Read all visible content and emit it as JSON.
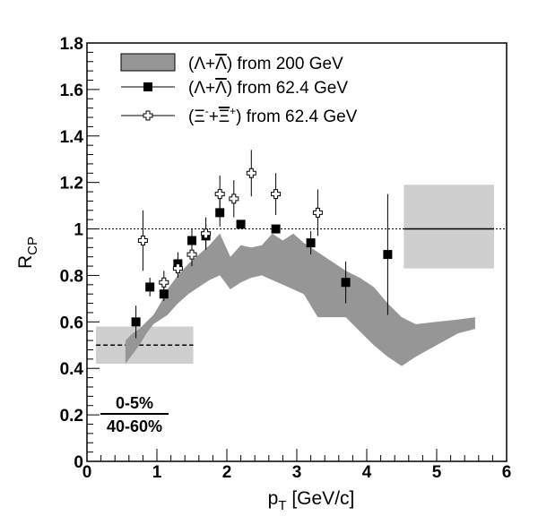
{
  "chart_data": {
    "type": "scatter",
    "xlabel": "p",
    "xlabel_sub": "T",
    "xlabel_unit": " [GeV/c]",
    "ylabel": "R",
    "ylabel_sub": "CP",
    "xlim": [
      0,
      6
    ],
    "ylim": [
      0,
      1.8
    ],
    "x_ticks": [
      0,
      1,
      2,
      3,
      4,
      5,
      6
    ],
    "y_ticks": [
      0,
      0.2,
      0.4,
      0.6,
      0.8,
      1,
      1.2,
      1.4,
      1.6,
      1.8
    ],
    "x_tick_labels": [
      "0",
      "1",
      "2",
      "3",
      "4",
      "5",
      "6"
    ],
    "y_tick_labels": [
      "0",
      "0.2",
      "0.4",
      "0.6",
      "0.8",
      "1",
      "1.2",
      "1.4",
      "1.6",
      "1.8"
    ],
    "grid": false,
    "legend_position": "top",
    "legend": [
      {
        "marker": "band",
        "part1": "(Λ+",
        "bar": "Λ",
        "part2": ") from 200 GeV"
      },
      {
        "marker": "filled-square",
        "part1": "(Λ+",
        "bar": "Λ",
        "part2": ") from 62.4 GeV"
      },
      {
        "marker": "open-cross",
        "part1": "(Ξ",
        "sup1": "-",
        "part2": "+",
        "bar": "Ξ",
        "sup2": "+",
        "part3": ") from 62.4 GeV"
      }
    ],
    "centrality_label": {
      "numerator": "0-5%",
      "denominator": "40-60%"
    },
    "reference_line_y": 1,
    "series": [
      {
        "name": "lambda_200",
        "style": "band",
        "color": "#969696",
        "x": [
          0.55,
          0.65,
          0.75,
          0.85,
          0.95,
          1.05,
          1.15,
          1.3,
          1.45,
          1.6,
          1.75,
          1.9,
          2.05,
          2.2,
          2.35,
          2.5,
          2.65,
          2.8,
          2.95,
          3.1,
          3.3,
          3.5,
          3.7,
          3.9,
          4.1,
          4.3,
          4.5,
          4.7,
          5.0,
          5.3,
          5.55
        ],
        "low": [
          0.42,
          0.46,
          0.5,
          0.55,
          0.59,
          0.61,
          0.63,
          0.68,
          0.72,
          0.75,
          0.78,
          0.8,
          0.74,
          0.77,
          0.79,
          0.8,
          0.78,
          0.76,
          0.74,
          0.72,
          0.62,
          0.62,
          0.62,
          0.56,
          0.5,
          0.45,
          0.41,
          0.45,
          0.5,
          0.55,
          0.57
        ],
        "high": [
          0.52,
          0.55,
          0.57,
          0.6,
          0.63,
          0.68,
          0.74,
          0.8,
          0.85,
          0.89,
          0.93,
          0.98,
          0.88,
          0.93,
          0.92,
          0.93,
          0.98,
          0.95,
          0.98,
          0.94,
          0.9,
          0.86,
          0.82,
          0.79,
          0.75,
          0.68,
          0.62,
          0.59,
          0.6,
          0.61,
          0.62
        ]
      },
      {
        "name": "lambda_62",
        "style": "filled-square",
        "color": "#000000",
        "x": [
          0.7,
          0.9,
          1.1,
          1.3,
          1.5,
          1.7,
          1.9,
          2.2,
          2.7,
          3.2,
          3.7,
          4.3
        ],
        "y": [
          0.6,
          0.75,
          0.72,
          0.85,
          0.95,
          0.97,
          1.07,
          1.02,
          1.0,
          0.94,
          0.77,
          0.89
        ],
        "y_err": [
          0.07,
          0.04,
          0.03,
          0.05,
          0.05,
          0.05,
          0.06,
          0.0,
          0.0,
          0.05,
          0.09,
          0.26
        ]
      },
      {
        "name": "xi_62",
        "style": "open-cross",
        "color": "#000000",
        "x": [
          0.8,
          1.1,
          1.3,
          1.5,
          1.7,
          1.9,
          2.1,
          2.35,
          2.7,
          3.3
        ],
        "y": [
          0.95,
          0.77,
          0.83,
          0.89,
          0.98,
          1.15,
          1.13,
          1.24,
          1.15,
          1.07
        ],
        "y_err": [
          0.13,
          0.05,
          0.04,
          0.05,
          0.07,
          0.08,
          0.08,
          0.1,
          0.09,
          0.1
        ]
      }
    ],
    "normalization_boxes": [
      {
        "name": "low-pt-normalization-box",
        "color": "#cfcfcf",
        "x0": 0.13,
        "x1": 1.52,
        "y0": 0.42,
        "y1": 0.58,
        "line_y": 0.5,
        "line_style": "dashed"
      },
      {
        "name": "high-pt-normalization-box",
        "color": "#cfcfcf",
        "x0": 4.53,
        "x1": 5.82,
        "y0": 0.83,
        "y1": 1.19,
        "line_y": 1.0,
        "line_style": "solid"
      }
    ]
  }
}
